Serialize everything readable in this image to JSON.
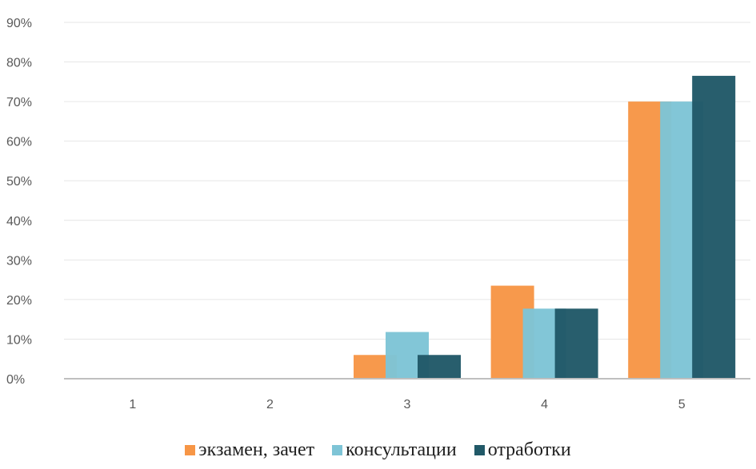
{
  "chart_data": {
    "type": "bar",
    "categories": [
      "1",
      "2",
      "3",
      "4",
      "5"
    ],
    "series": [
      {
        "name": "экзамен, зачет",
        "color": "#F79646",
        "values": [
          0,
          0,
          0.06,
          0.235,
          0.7
        ]
      },
      {
        "name": "консультации",
        "color": "#7EC4D6",
        "values": [
          0,
          0,
          0.118,
          0.177,
          0.7
        ]
      },
      {
        "name": "отработки",
        "color": "#215968",
        "values": [
          0,
          0,
          0.06,
          0.177,
          0.765
        ]
      }
    ],
    "ylim": [
      0,
      0.9
    ],
    "yticks": [
      "0%",
      "10%",
      "20%",
      "30%",
      "40%",
      "50%",
      "60%",
      "70%",
      "80%",
      "90%"
    ],
    "grid": true,
    "legend_position": "bottom"
  }
}
